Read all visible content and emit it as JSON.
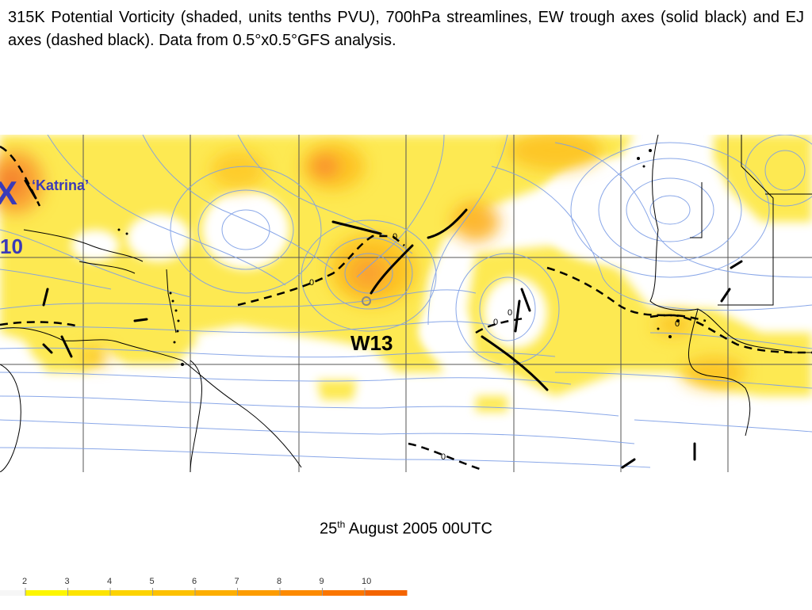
{
  "caption": "315K Potential Vorticity (shaded, units tenths PVU), 700hPa streamlines, EW trough axes (solid black) and EJ axes (dashed black). Data from 0.5°x0.5°GFS analysis.",
  "map": {
    "storm_marker": "X",
    "storm_label": "‘Katrina’",
    "system_number": "10",
    "wave_label": "W13",
    "zero_contour_label": "0",
    "shading_colors": [
      "#fdfd9a",
      "#fde832",
      "#fdc824",
      "#fdae2c",
      "#f98e33",
      "#f46f33"
    ],
    "trough_axis_color": "#000000",
    "streamline_color": "#7d9ee6",
    "label_color": "#3a3ab8",
    "icons": [
      "storm-x-icon",
      "trough-axis-line",
      "jet-axis-dashed-line"
    ]
  },
  "date": {
    "day": "25",
    "suffix": "th",
    "rest": " August 2005 00UTC"
  },
  "color_scale": {
    "ticks": [
      "2",
      "3",
      "4",
      "5",
      "6",
      "7",
      "8",
      "9",
      "10"
    ],
    "colors": [
      "#f6f6f6",
      "#fdf600",
      "#fde400",
      "#fdd300",
      "#fdc100",
      "#fdae00",
      "#fd9c00",
      "#fd8a00",
      "#fb7600",
      "#f46400"
    ]
  }
}
